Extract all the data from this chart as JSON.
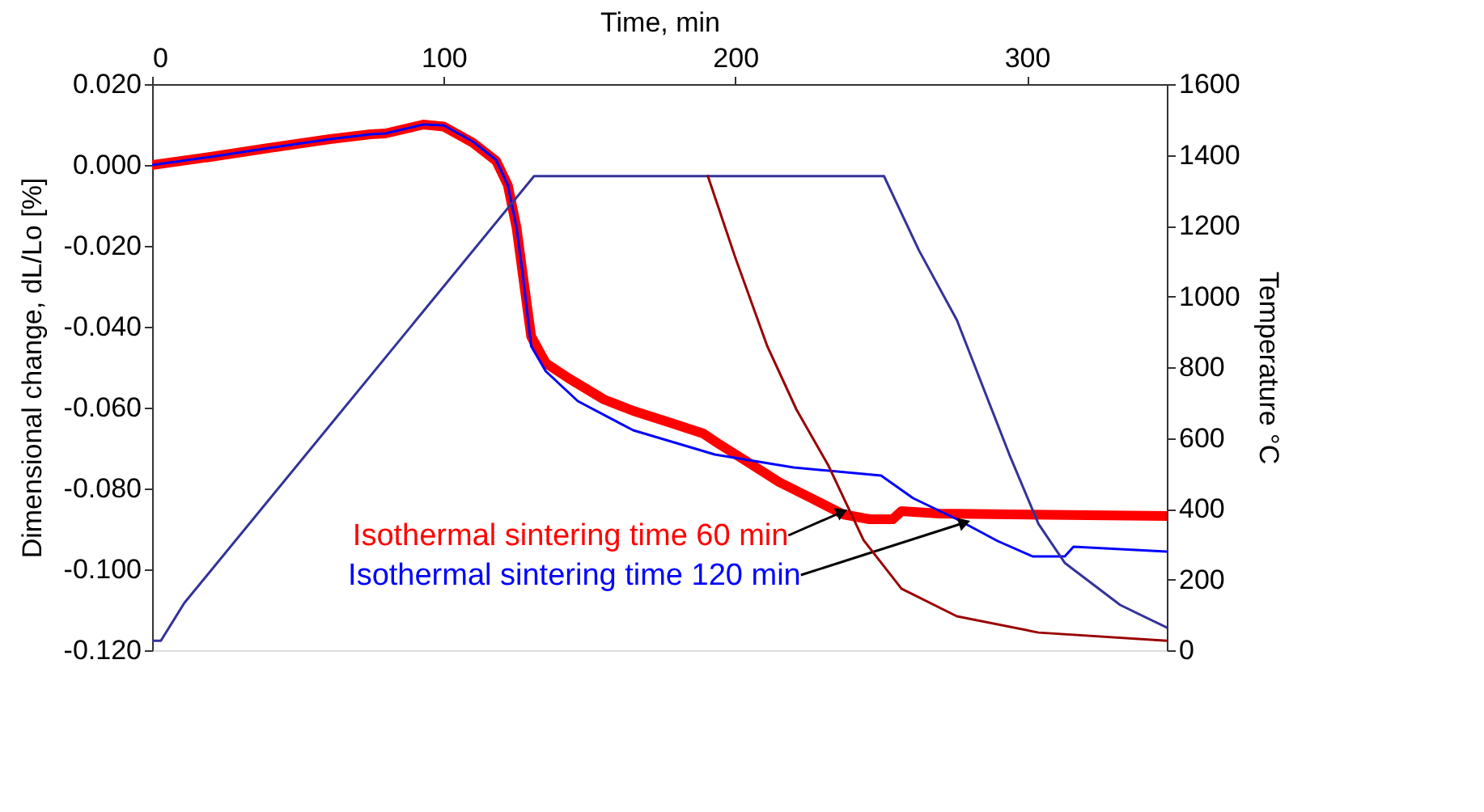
{
  "chart_data": {
    "type": "line",
    "xlabel": "Time, min",
    "ylabel": "Dimensional change, dL/Lo [%]",
    "y2label": "Temperature °C",
    "xlim": [
      0,
      348
    ],
    "xticks": [
      0,
      100,
      200,
      300
    ],
    "ylim": [
      -0.12,
      0.02
    ],
    "yticks": [
      {
        "value": -0.12,
        "label": "-0.120"
      },
      {
        "value": -0.1,
        "label": "-0.100"
      },
      {
        "value": -0.08,
        "label": "-0.080"
      },
      {
        "value": -0.06,
        "label": "-0.060"
      },
      {
        "value": -0.04,
        "label": "-0.040"
      },
      {
        "value": -0.02,
        "label": "-0.020"
      },
      {
        "value": 0,
        "label": "0.000"
      },
      {
        "value": 0.02,
        "label": "0.020"
      }
    ],
    "y2lim": [
      0,
      1600
    ],
    "y2ticks": [
      0,
      200,
      400,
      600,
      800,
      1000,
      1200,
      1400,
      1600
    ],
    "grid": false,
    "marker": "none",
    "line_style": "solid",
    "series": [
      {
        "color": "#ff0000",
        "x": [
          0,
          20,
          40,
          61,
          75,
          80,
          93,
          100,
          110,
          118,
          122,
          125,
          127,
          130,
          135,
          143,
          155,
          165,
          178,
          189,
          194,
          205,
          215,
          225,
          237,
          246,
          254,
          257,
          270,
          294,
          348
        ],
        "values": [
          0,
          0.002,
          0.0042,
          0.0064,
          0.0076,
          0.0078,
          0.01,
          0.0095,
          0.0055,
          0.001,
          -0.005,
          -0.0156,
          -0.0264,
          -0.0424,
          -0.049,
          -0.0528,
          -0.058,
          -0.0608,
          -0.0638,
          -0.0664,
          -0.0688,
          -0.0738,
          -0.0784,
          -0.082,
          -0.0864,
          -0.0876,
          -0.0876,
          -0.0856,
          -0.0862,
          -0.0864,
          -0.0868
        ]
      },
      {
        "color": "#0000ff",
        "x": [
          0,
          20,
          40,
          61,
          75,
          80,
          93,
          100,
          110,
          118,
          122,
          125,
          127,
          130,
          135,
          146,
          165,
          193,
          220,
          250,
          261,
          276,
          290,
          302,
          313,
          316,
          348
        ],
        "values": [
          0,
          0.002,
          0.0042,
          0.0064,
          0.0076,
          0.0078,
          0.01,
          0.0098,
          0.0058,
          0.0012,
          -0.005,
          -0.0156,
          -0.0264,
          -0.0448,
          -0.051,
          -0.0584,
          -0.0656,
          -0.0716,
          -0.0748,
          -0.0768,
          -0.0824,
          -0.0876,
          -0.093,
          -0.0968,
          -0.0968,
          -0.0944,
          -0.0956
        ]
      },
      {
        "color": "#333399",
        "axis": "y2",
        "x": [
          0,
          3,
          11,
          131,
          140,
          251,
          263,
          276,
          294,
          304,
          313,
          332,
          348
        ],
        "values": [
          27,
          27,
          133,
          1340,
          1340,
          1340,
          1130,
          933,
          553,
          357,
          247,
          128,
          64
        ]
      },
      {
        "color": "#990000",
        "axis": "y2",
        "x": [
          190.6,
          200,
          211,
          221,
          232,
          244,
          257,
          276,
          304,
          348
        ],
        "values": [
          1340,
          1110,
          859,
          680,
          521,
          311,
          174,
          96,
          50,
          27
        ]
      }
    ],
    "annotations": [
      {
        "text": "Isothermal sintering time 60 min",
        "x": 236,
        "y": -0.086
      },
      {
        "text": "Isothermal sintering time 120 min",
        "x": 278,
        "y": -0.0886
      }
    ]
  }
}
